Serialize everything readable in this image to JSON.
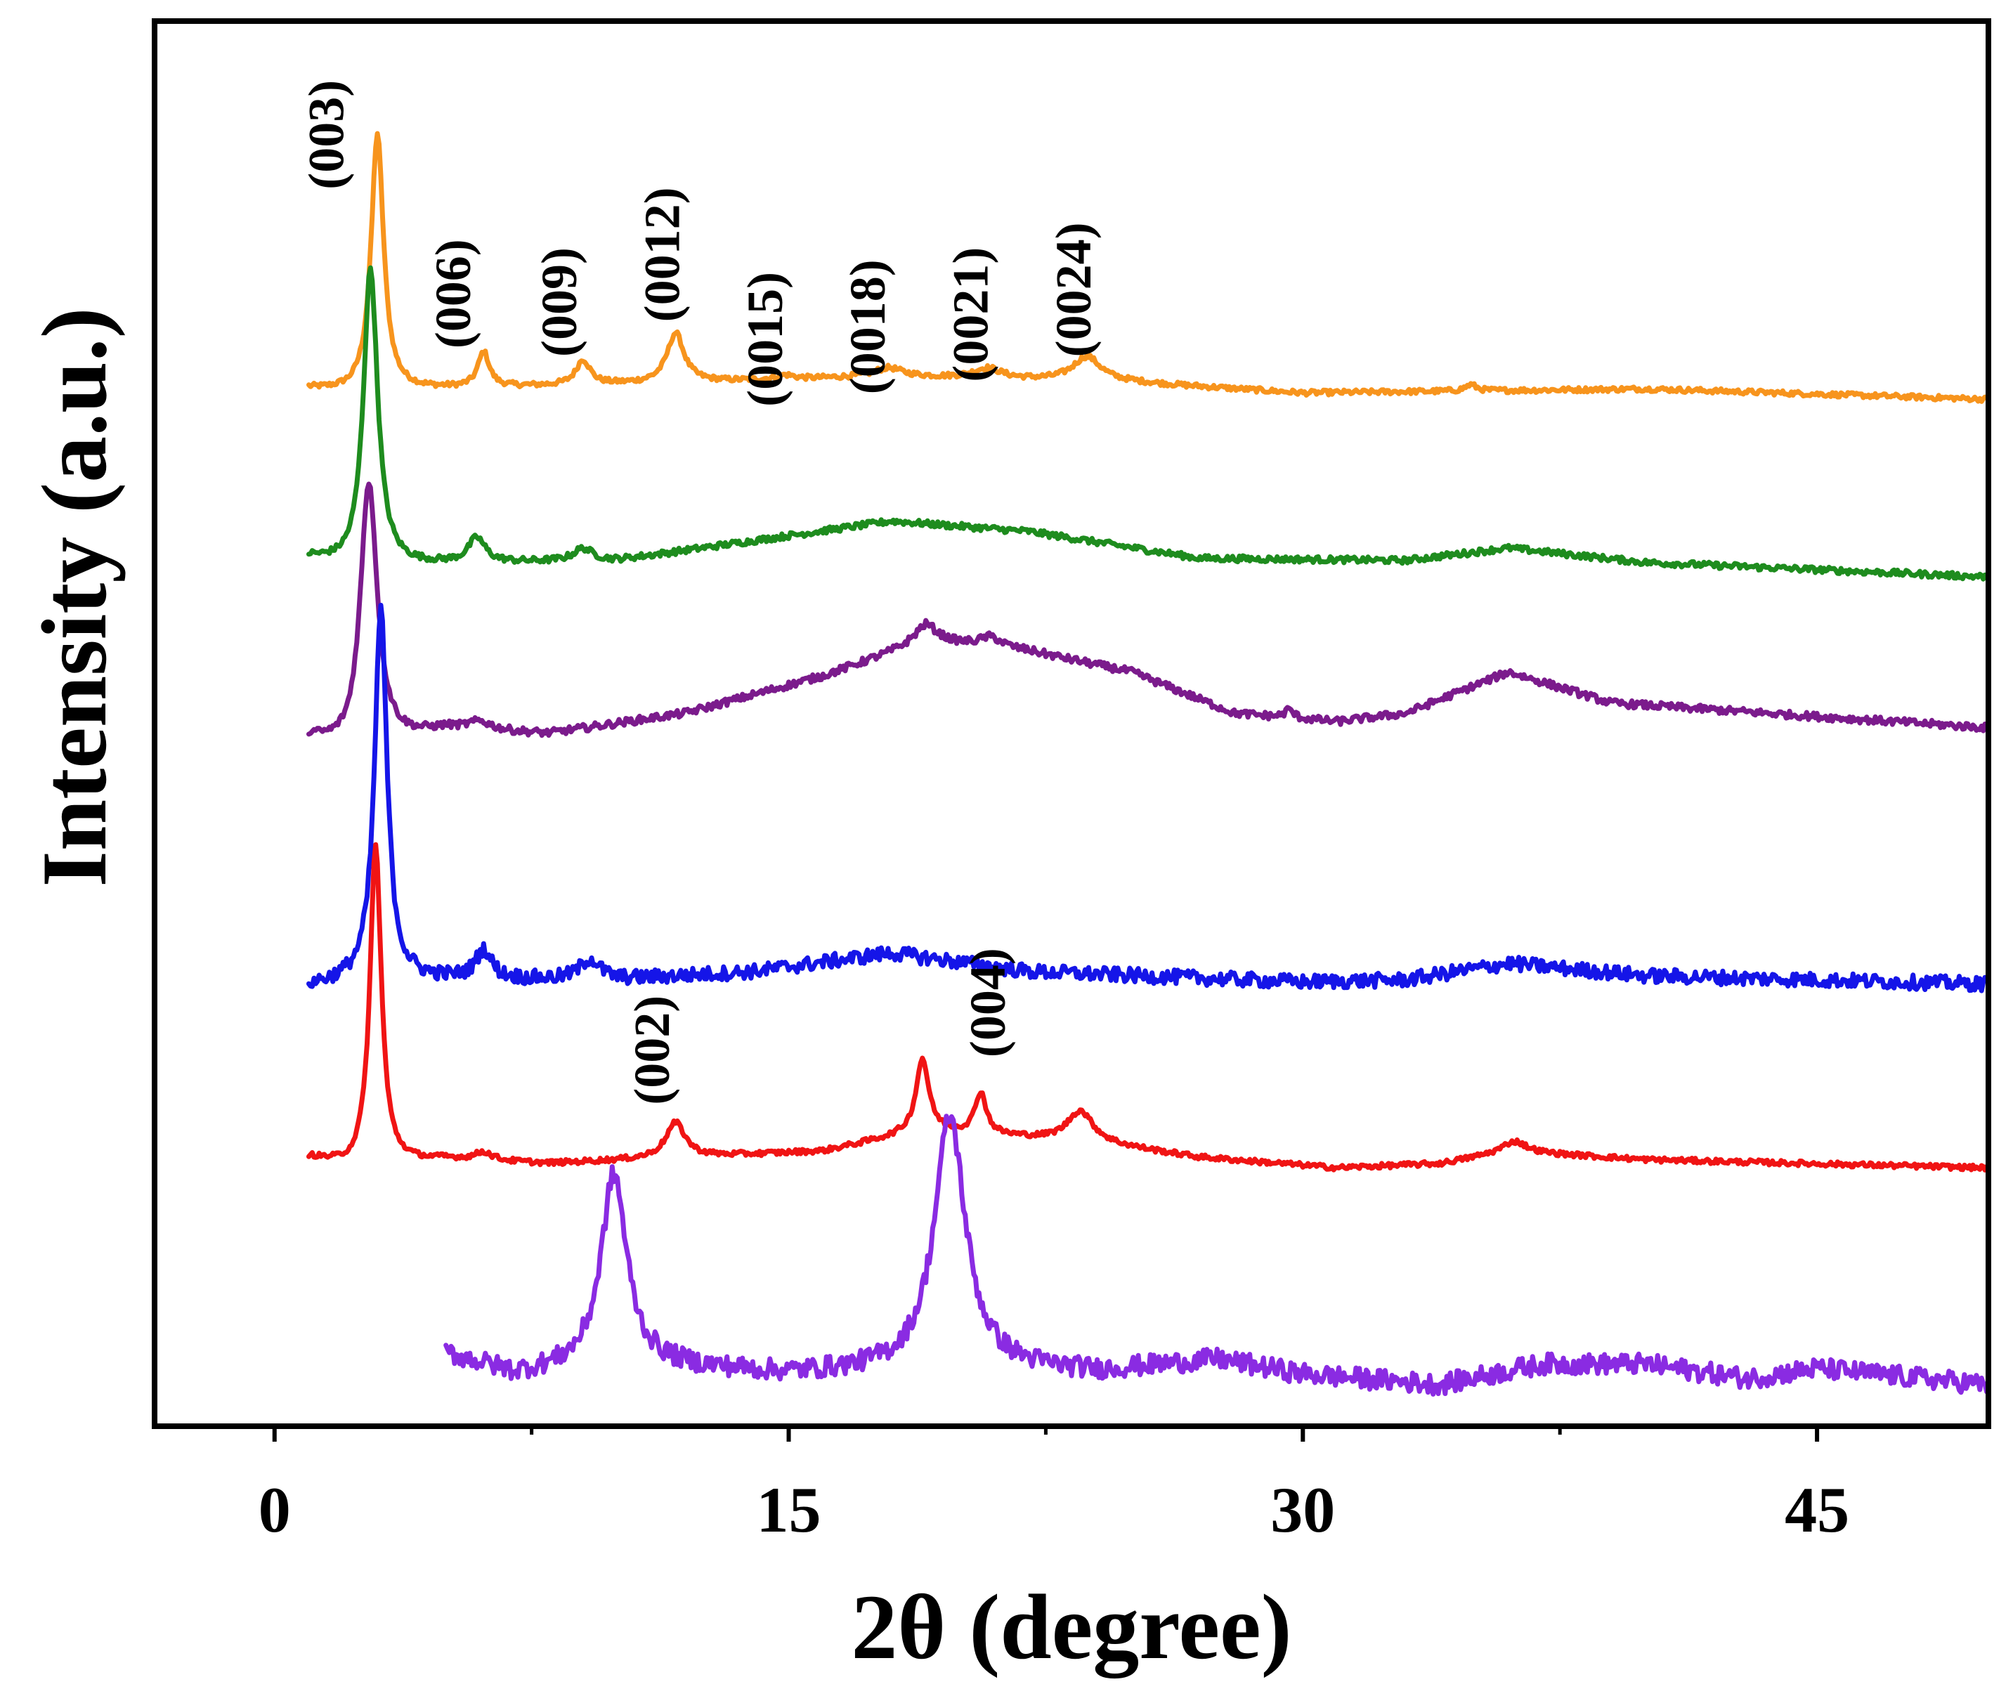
{
  "chart_data": {
    "type": "line",
    "title": "",
    "xlabel": "2θ (degree)",
    "ylabel": "Intensity (a.u.)",
    "xlim": [
      -3.5,
      50
    ],
    "ylim": [
      -0.2,
      6.6
    ],
    "xticks": [
      {
        "value": 0,
        "label": "0"
      },
      {
        "value": 15,
        "label": "15"
      },
      {
        "value": 30,
        "label": "30"
      },
      {
        "value": 45,
        "label": "45"
      }
    ],
    "minor_xticks": [
      7.5,
      22.5,
      37.5
    ],
    "yticks": [],
    "grid": false,
    "legend": "none",
    "series": [
      {
        "name": "pattern-1-orange",
        "color": "#f7941d",
        "offset": 4.8,
        "noise": 0.012,
        "baseline": [
          [
            1,
            0.02
          ],
          [
            2.2,
            0.0
          ],
          [
            5,
            0.02
          ],
          [
            12,
            0.05
          ],
          [
            18,
            0.08
          ],
          [
            25,
            0.05
          ],
          [
            30,
            0.0
          ],
          [
            40,
            0.02
          ],
          [
            50,
            -0.03
          ]
        ],
        "peaks": [
          {
            "x": 3.0,
            "h": 1.25,
            "w": 0.22
          },
          {
            "x": 6.1,
            "h": 0.17,
            "w": 0.2
          },
          {
            "x": 9.0,
            "h": 0.12,
            "w": 0.25
          },
          {
            "x": 11.7,
            "h": 0.24,
            "w": 0.3
          },
          {
            "x": 14.9,
            "h": 0.02,
            "w": 0.3
          },
          {
            "x": 17.9,
            "h": 0.04,
            "w": 0.5
          },
          {
            "x": 20.8,
            "h": 0.05,
            "w": 0.5
          },
          {
            "x": 23.7,
            "h": 0.12,
            "w": 0.5
          },
          {
            "x": 34.9,
            "h": 0.03,
            "w": 0.2
          }
        ]
      },
      {
        "name": "pattern-2-green",
        "color": "#1e8c1e",
        "offset": 3.95,
        "noise": 0.015,
        "baseline": [
          [
            1,
            0.05
          ],
          [
            2.2,
            0.0
          ],
          [
            5,
            0.02
          ],
          [
            10,
            0.04
          ],
          [
            18,
            0.23
          ],
          [
            22,
            0.18
          ],
          [
            27,
            0.05
          ],
          [
            33,
            0.04
          ],
          [
            36,
            0.1
          ],
          [
            40,
            0.03
          ],
          [
            50,
            -0.04
          ]
        ],
        "peaks": [
          {
            "x": 2.8,
            "h": 1.45,
            "w": 0.25
          },
          {
            "x": 5.9,
            "h": 0.12,
            "w": 0.3
          },
          {
            "x": 9.0,
            "h": 0.06,
            "w": 0.35
          }
        ]
      },
      {
        "name": "pattern-3-purple",
        "color": "#7b1b8c",
        "offset": 3.05,
        "noise": 0.018,
        "baseline": [
          [
            1,
            0.08
          ],
          [
            2.2,
            0.0
          ],
          [
            5,
            0.12
          ],
          [
            8,
            0.1
          ],
          [
            12,
            0.2
          ],
          [
            16,
            0.38
          ],
          [
            19,
            0.55
          ],
          [
            22,
            0.5
          ],
          [
            25,
            0.4
          ],
          [
            28,
            0.2
          ],
          [
            31,
            0.16
          ],
          [
            33,
            0.2
          ],
          [
            36,
            0.4
          ],
          [
            39,
            0.25
          ],
          [
            50,
            0.13
          ]
        ],
        "peaks": [
          {
            "x": 2.75,
            "h": 1.3,
            "w": 0.3
          },
          {
            "x": 6.0,
            "h": 0.04,
            "w": 0.4
          },
          {
            "x": 19.0,
            "h": 0.08,
            "w": 0.4
          },
          {
            "x": 20.9,
            "h": 0.05,
            "w": 0.4
          },
          {
            "x": 29.6,
            "h": 0.04,
            "w": 0.15
          }
        ]
      },
      {
        "name": "pattern-4-blue",
        "color": "#1515e8",
        "offset": 1.9,
        "noise": 0.035,
        "baseline": [
          [
            1,
            0.03
          ],
          [
            2.2,
            0.05
          ],
          [
            5,
            0.06
          ],
          [
            10,
            0.06
          ],
          [
            14,
            0.1
          ],
          [
            18,
            0.19
          ],
          [
            22,
            0.1
          ],
          [
            30,
            0.05
          ],
          [
            33,
            0.06
          ],
          [
            36,
            0.14
          ],
          [
            40,
            0.08
          ],
          [
            50,
            0.04
          ]
        ],
        "peaks": [
          {
            "x": 3.1,
            "h": 1.8,
            "w": 0.22
          },
          {
            "x": 6.1,
            "h": 0.14,
            "w": 0.28
          },
          {
            "x": 9.2,
            "h": 0.1,
            "w": 0.35
          }
        ]
      },
      {
        "name": "pattern-5-red",
        "color": "#f01414",
        "offset": 1.05,
        "noise": 0.012,
        "baseline": [
          [
            1,
            0.05
          ],
          [
            2.2,
            0.0
          ],
          [
            5,
            0.04
          ],
          [
            8,
            0.02
          ],
          [
            12,
            0.05
          ],
          [
            16,
            0.08
          ],
          [
            19,
            0.18
          ],
          [
            24,
            0.12
          ],
          [
            27,
            0.05
          ],
          [
            31,
            0.0
          ],
          [
            34,
            0.02
          ],
          [
            36,
            0.08
          ],
          [
            40,
            0.04
          ],
          [
            50,
            0.0
          ]
        ],
        "peaks": [
          {
            "x": 2.95,
            "h": 1.55,
            "w": 0.2
          },
          {
            "x": 6.1,
            "h": 0.04,
            "w": 0.3
          },
          {
            "x": 11.7,
            "h": 0.17,
            "w": 0.35
          },
          {
            "x": 18.9,
            "h": 0.35,
            "w": 0.22
          },
          {
            "x": 20.6,
            "h": 0.2,
            "w": 0.2
          },
          {
            "x": 23.5,
            "h": 0.15,
            "w": 0.45
          },
          {
            "x": 36.2,
            "h": 0.05,
            "w": 0.4
          }
        ]
      },
      {
        "name": "pattern-6-violet",
        "color": "#8a2be2",
        "offset": 0.0,
        "noise": 0.05,
        "baseline": [
          [
            5,
            0.15
          ],
          [
            7,
            0.05
          ],
          [
            10,
            0.1
          ],
          [
            15,
            0.05
          ],
          [
            20,
            0.08
          ],
          [
            24,
            0.06
          ],
          [
            27.5,
            0.12
          ],
          [
            30,
            0.05
          ],
          [
            34,
            0.0
          ],
          [
            37,
            0.1
          ],
          [
            40,
            0.1
          ],
          [
            43,
            0.03
          ],
          [
            45,
            0.08
          ],
          [
            50,
            0.0
          ]
        ],
        "peaks": [
          {
            "x": 9.9,
            "h": 0.92,
            "w": 0.45
          },
          {
            "x": 19.7,
            "h": 1.22,
            "w": 0.55
          }
        ]
      }
    ],
    "annotations": [
      {
        "label": "(003)",
        "x": 2.0,
        "y": 6.05
      },
      {
        "label": "(006)",
        "x": 5.7,
        "y": 5.28
      },
      {
        "label": "(009)",
        "x": 8.8,
        "y": 5.24
      },
      {
        "label": "(0012)",
        "x": 11.8,
        "y": 5.47
      },
      {
        "label": "(0015)",
        "x": 14.8,
        "y": 5.06
      },
      {
        "label": "(0018)",
        "x": 17.8,
        "y": 5.12
      },
      {
        "label": "(0021)",
        "x": 20.8,
        "y": 5.18
      },
      {
        "label": "(0024)",
        "x": 23.8,
        "y": 5.3
      },
      {
        "label": "(002)",
        "x": 11.5,
        "y": 1.62
      },
      {
        "label": "(004)",
        "x": 21.3,
        "y": 1.85
      }
    ]
  }
}
